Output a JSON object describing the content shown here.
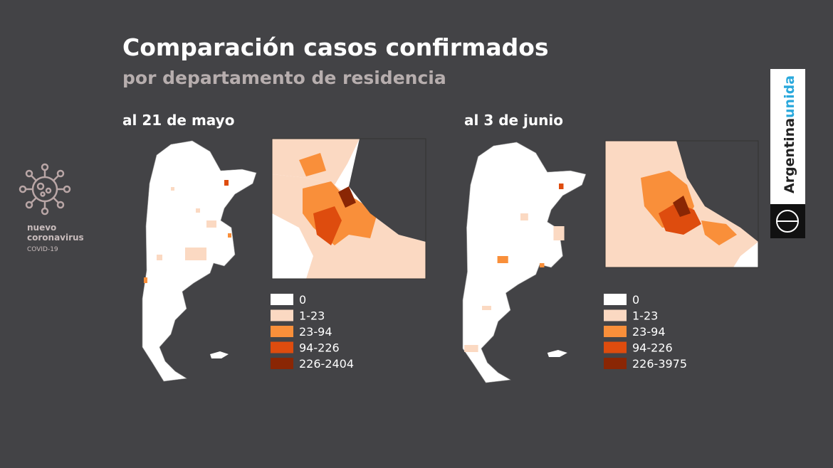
{
  "header": {
    "title": "Comparación casos confirmados",
    "subtitle": "por departamento de residencia"
  },
  "panels": [
    {
      "label": "al 21 de mayo",
      "legend": [
        {
          "label": "0",
          "color": "#ffffff"
        },
        {
          "label": "1-23",
          "color": "#fbd9c2"
        },
        {
          "label": "23-94",
          "color": "#f98f3a"
        },
        {
          "label": "94-226",
          "color": "#de4c0e"
        },
        {
          "label": "226-2404",
          "color": "#8a2604"
        }
      ]
    },
    {
      "label": "al 3 de junio",
      "legend": [
        {
          "label": "0",
          "color": "#ffffff"
        },
        {
          "label": "1-23",
          "color": "#fbd9c2"
        },
        {
          "label": "23-94",
          "color": "#f98f3a"
        },
        {
          "label": "94-226",
          "color": "#de4c0e"
        },
        {
          "label": "226-3975",
          "color": "#8a2604"
        }
      ]
    }
  ],
  "logo": {
    "line1": "nuevo",
    "line2": "coronavirus",
    "line3": "COVID-19"
  },
  "brand": {
    "text1": "Argentina",
    "text2": "unida"
  }
}
